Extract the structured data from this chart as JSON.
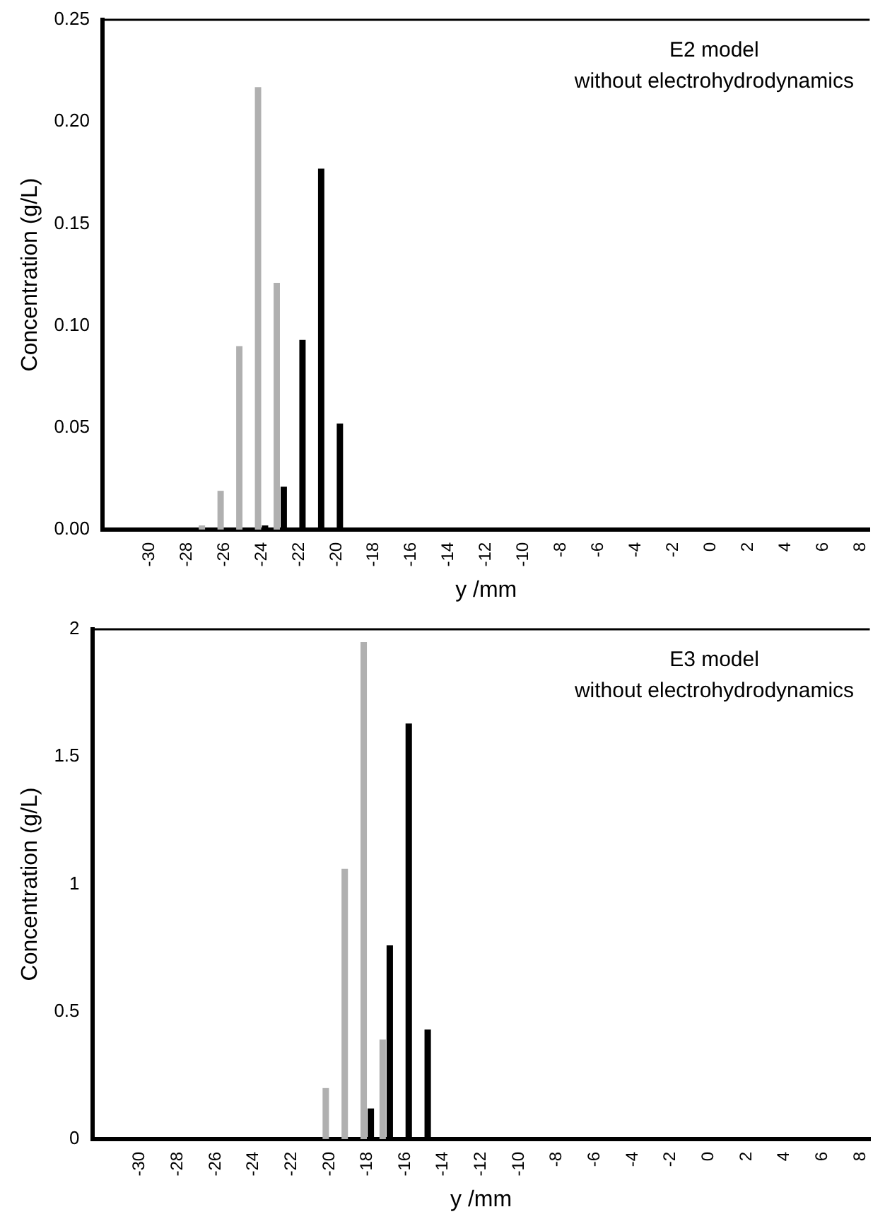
{
  "chart_data": [
    {
      "type": "bar",
      "xlabel": "y /mm",
      "ylabel": "Concentration (g/L)",
      "annotations": [
        "E2 model",
        "without electrohydrodynamics"
      ],
      "categories": [
        null,
        null,
        "-30",
        null,
        "-28",
        null,
        "-26",
        null,
        "-24",
        null,
        "-22",
        null,
        "-20",
        null,
        "-18",
        null,
        "-16",
        null,
        "-14",
        null,
        "-12",
        null,
        "-10",
        null,
        "-8",
        null,
        "-6",
        null,
        "-4",
        null,
        "-2",
        null,
        "0",
        null,
        "2",
        null,
        "4",
        null,
        "6",
        null,
        "8"
      ],
      "series": [
        {
          "color": "#b0b0b0",
          "values": [
            0,
            0,
            0,
            0,
            0,
            0.002,
            0.019,
            0.09,
            0.217,
            0.121,
            null,
            0,
            0,
            0,
            0,
            0,
            0,
            0,
            0,
            0,
            0,
            0,
            0,
            0,
            0,
            0,
            0,
            0,
            0,
            0,
            0,
            0,
            0,
            0,
            0,
            0,
            0,
            0,
            0,
            0,
            0
          ]
        },
        {
          "color": "#000000",
          "values": [
            0,
            0,
            0,
            0,
            0,
            0,
            0,
            0,
            0.002,
            0.021,
            0.093,
            0.177,
            0.052,
            0,
            0,
            0,
            0,
            0,
            0,
            0,
            0,
            0,
            0,
            0,
            0,
            0,
            0,
            0,
            0,
            0,
            0,
            0,
            0,
            0,
            0,
            0,
            0,
            0,
            0,
            0,
            0
          ]
        }
      ],
      "ylim": [
        0,
        0.25
      ],
      "yticks": [
        {
          "value": 0,
          "label": "0.00"
        },
        0.05,
        {
          "value": 0.1,
          "label": "0.10"
        },
        0.15,
        {
          "value": 0.2,
          "label": "0.20"
        },
        0.25
      ],
      "grid": false,
      "legend": false
    },
    {
      "type": "bar",
      "xlabel": "y /mm",
      "ylabel": "Concentration (g/L)",
      "annotations": [
        "E3 model",
        "without electrohydrodynamics"
      ],
      "categories": [
        null,
        null,
        "-30",
        null,
        "-28",
        null,
        "-26",
        null,
        "-24",
        null,
        "-22",
        null,
        "-20",
        null,
        "-18",
        null,
        "-16",
        null,
        "-14",
        null,
        "-12",
        null,
        "-10",
        null,
        "-8",
        null,
        "-6",
        null,
        "-4",
        null,
        "-2",
        null,
        "0",
        null,
        "2",
        null,
        "4",
        null,
        "6",
        null,
        "8"
      ],
      "series": [
        {
          "color": "#b0b0b0",
          "values": [
            0,
            0,
            0,
            0,
            0,
            0,
            0,
            0,
            0,
            0,
            0,
            0,
            0.2,
            1.06,
            1.95,
            0.39,
            0,
            0,
            0,
            0,
            0,
            0,
            0,
            0,
            0,
            0,
            0,
            0,
            0,
            0,
            0,
            0,
            0,
            0,
            0,
            0,
            0,
            0,
            0,
            0,
            0
          ]
        },
        {
          "color": "#000000",
          "values": [
            0,
            0,
            0,
            0,
            0,
            0,
            0,
            0,
            0,
            0,
            0,
            0,
            0,
            0,
            0.12,
            0.76,
            1.63,
            0.43,
            0,
            0,
            0,
            0,
            0,
            0,
            0,
            0,
            0,
            0,
            0,
            0,
            0,
            0,
            0,
            0,
            0,
            0,
            0,
            0,
            0,
            0,
            0
          ]
        }
      ],
      "ylim": [
        0,
        2
      ],
      "yticks": [
        0,
        0.5,
        1,
        1.5,
        2
      ],
      "grid": false,
      "legend": false
    }
  ]
}
